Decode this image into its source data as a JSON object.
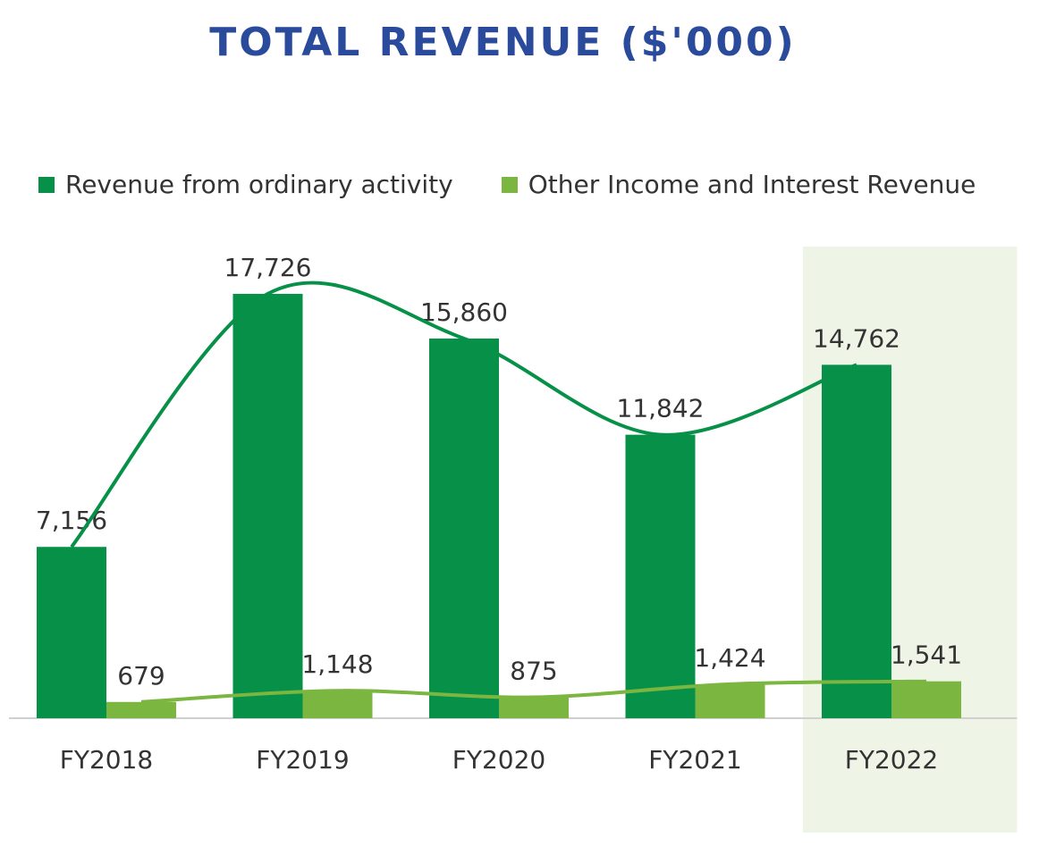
{
  "chart_data": {
    "type": "bar",
    "title": "TOTAL REVENUE ($'000)",
    "categories": [
      "FY2018",
      "FY2019",
      "FY2020",
      "FY2021",
      "FY2022"
    ],
    "series": [
      {
        "name": "Revenue from ordinary activity",
        "color": "#079048",
        "values": [
          7156,
          17726,
          15860,
          11842,
          14762
        ],
        "labels": [
          "7,156",
          "17,726",
          "15,860",
          "11,842",
          "14,762"
        ]
      },
      {
        "name": "Other Income and Interest Revenue",
        "color": "#7ab640",
        "values": [
          679,
          1148,
          875,
          1424,
          1541
        ],
        "labels": [
          "679",
          "1,148",
          "875",
          "1,424",
          "1,541"
        ]
      }
    ],
    "trendlines": [
      {
        "series": "Revenue from ordinary activity",
        "color": "#079048",
        "smooth": true
      },
      {
        "series": "Other Income and Interest Revenue",
        "color": "#7ab640",
        "smooth": true
      }
    ],
    "highlight_category": "FY2022",
    "highlight_color": "#eef5e6",
    "ylim": [
      0,
      20000
    ],
    "grid": false,
    "legend_position": "top"
  }
}
